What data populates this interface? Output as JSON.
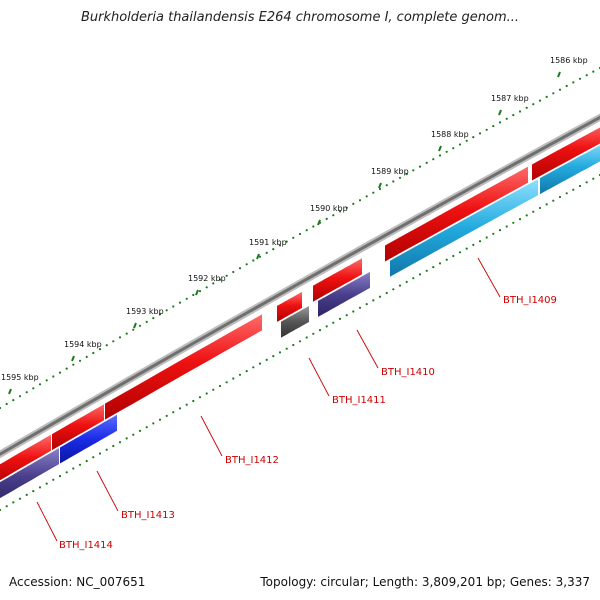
{
  "title": "Burkholderia thailandensis E264 chromosome I, complete genom...",
  "footer": {
    "accession": "Accession: NC_007651",
    "summary": "Topology: circular; Length: 3,809,201 bp; Genes: 3,337"
  },
  "scale": {
    "ticks": [
      "1586 kbp",
      "1587 kbp",
      "1588 kbp",
      "1589 kbp",
      "1590 kbp",
      "1591 kbp",
      "1592 kbp",
      "1593 kbp",
      "1594 kbp",
      "1595 kbp"
    ],
    "dot_color": "#1a7a1a"
  },
  "colors": {
    "backbone": "#7a7a7a",
    "gene": "#ee1111",
    "cds_purple": "#4a3f8c",
    "cds_blue": "#1a2be6",
    "cds_cyan": "#22aadd",
    "misc_gray": "#555555",
    "label": "#cc0000"
  },
  "genes": [
    {
      "name": "BTH_I1409"
    },
    {
      "name": "BTH_I1410"
    },
    {
      "name": "BTH_I1411"
    },
    {
      "name": "BTH_I1412"
    },
    {
      "name": "BTH_I1413"
    },
    {
      "name": "BTH_I1414"
    }
  ]
}
